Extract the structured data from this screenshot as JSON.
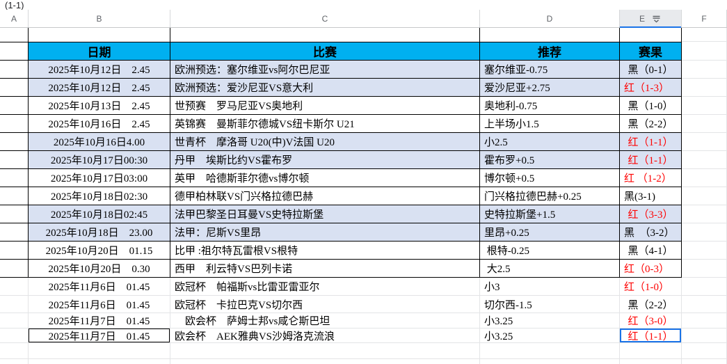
{
  "formula_bar": {
    "value": "(1-1)"
  },
  "column_headers": [
    "A",
    "B",
    "C",
    "D",
    "E",
    "F"
  ],
  "selected_column": "E",
  "icons": {
    "column_dropdown": "column-dropdown-icon",
    "fill_handle": "fill-handle"
  },
  "colors": {
    "header_bg": "#00b0f0",
    "shaded_row_bg": "#d9e1f2",
    "red_text": "#fe0000",
    "black_text": "#000000",
    "selection_blue": "#1a73e8"
  },
  "table": {
    "headers": {
      "date": "日期",
      "match": "比赛",
      "tip": "推荐",
      "result": "赛果"
    },
    "rows": [
      {
        "date": "2025年10月12日　2.45",
        "match": "欧洲预选：塞尔维亚vs阿尔巴尼亚",
        "tip": "塞尔维亚-0.75",
        "result": "黑（0-1）",
        "result_color": "black",
        "shaded": true,
        "bordered": true
      },
      {
        "date": "2025年10月12日　2.45",
        "match": "欧洲预选：爱沙尼亚VS意大利",
        "tip": "爱沙尼亚+2.75",
        "result": "红（1-3）",
        "result_color": "red",
        "shaded": true,
        "bordered": true,
        "result_align": "left"
      },
      {
        "date": "2025年10月13日　2.45",
        "match": "世预赛　罗马尼亚VS奥地利",
        "tip": "奥地利-0.75",
        "result": "黑（1-0）",
        "result_color": "black",
        "shaded": false,
        "bordered": true
      },
      {
        "date": "2025年10月16日　2.45",
        "match": "英锦赛　曼斯菲尔德城VS纽卡斯尔 U21",
        "tip": "上半场小1.5",
        "result": "黑（2-2）",
        "result_color": "black",
        "shaded": false,
        "bordered": true
      },
      {
        "date": "2025年10月16日4.00",
        "match": "世青杯　摩洛哥 U20(中)V法国 U20",
        "tip": "小2.5",
        "result": "红（1-1）",
        "result_color": "red",
        "shaded": true,
        "bordered": true
      },
      {
        "date": "2025年10月17日00:30",
        "match": "丹甲　埃斯比约VS霍布罗",
        "tip": "霍布罗+0.5",
        "result": "红（1-1）",
        "result_color": "red",
        "shaded": true,
        "bordered": true
      },
      {
        "date": "2025年10月17日03:00",
        "match": "英甲　哈德斯菲尔德vs博尔顿",
        "tip": "博尔顿+0.5",
        "result": "红 （1-2）",
        "result_color": "red",
        "shaded": false,
        "bordered": true,
        "result_align": "left"
      },
      {
        "date": "2025年10月18日02:30",
        "match": "德甲柏林联VS门兴格拉德巴赫",
        "tip": "门兴格拉德巴赫+0.25",
        "result": "黑(3-1)",
        "result_color": "black",
        "shaded": false,
        "bordered": true,
        "result_align": "left"
      },
      {
        "date": "2025年10月18日02:45",
        "match": "法甲巴黎圣日耳曼VS史特拉斯堡",
        "tip": "史特拉斯堡+1.5",
        "result": "红（3-3）",
        "result_color": "red",
        "shaded": true,
        "bordered": true
      },
      {
        "date": "2025年10月18日　23.00",
        "match": "法甲：尼斯VS里昂",
        "tip": "里昂+0.25",
        "result": "黑　（3-2）",
        "result_color": "black",
        "shaded": true,
        "bordered": true,
        "result_align": "left"
      },
      {
        "date": "2025年10月20日　01.15",
        "match": "比甲 :祖尔特瓦雷根VS根特",
        "tip": " 根特-0.25",
        "result": "黑（4-1）",
        "result_color": "black",
        "shaded": false,
        "bordered": true
      },
      {
        "date": "2025年10月20日　0.30",
        "match": "西甲　利云特VS巴列卡诺",
        "tip": " 大2.5",
        "result": "红（0-3）",
        "result_color": "red",
        "shaded": false,
        "bordered": true,
        "result_align": "left"
      },
      {
        "date": "2025年11月6日　01.45",
        "match": "欧冠杯　帕福斯vs比雷亚雷亚尔",
        "tip": "小3",
        "result": "红（1-0）",
        "result_color": "red",
        "shaded": false,
        "bordered": false,
        "result_align": "left"
      },
      {
        "date": "2025年11月6日　01.45",
        "match": "欧冠杯　卡拉巴克VS切尔西",
        "tip": "切尔西-1.5",
        "result": "黑（2-2）",
        "result_color": "black",
        "shaded": false,
        "bordered": false
      },
      {
        "date": "2025年11月7日　01.45",
        "match": "　欧会杯　萨姆士邦vs咸仑斯巴坦",
        "tip": "小3.25",
        "result": "红（3-0）",
        "result_color": "red",
        "shaded": false,
        "bordered": false
      },
      {
        "date": "2025年11月7日　01.45",
        "match": "欧会杯　AEK雅典VS沙姆洛克流浪",
        "tip": "小3.25",
        "result": "红（1-1）",
        "result_color": "red",
        "shaded": false,
        "bordered": false,
        "date_boxed": true,
        "selected": true
      }
    ]
  }
}
